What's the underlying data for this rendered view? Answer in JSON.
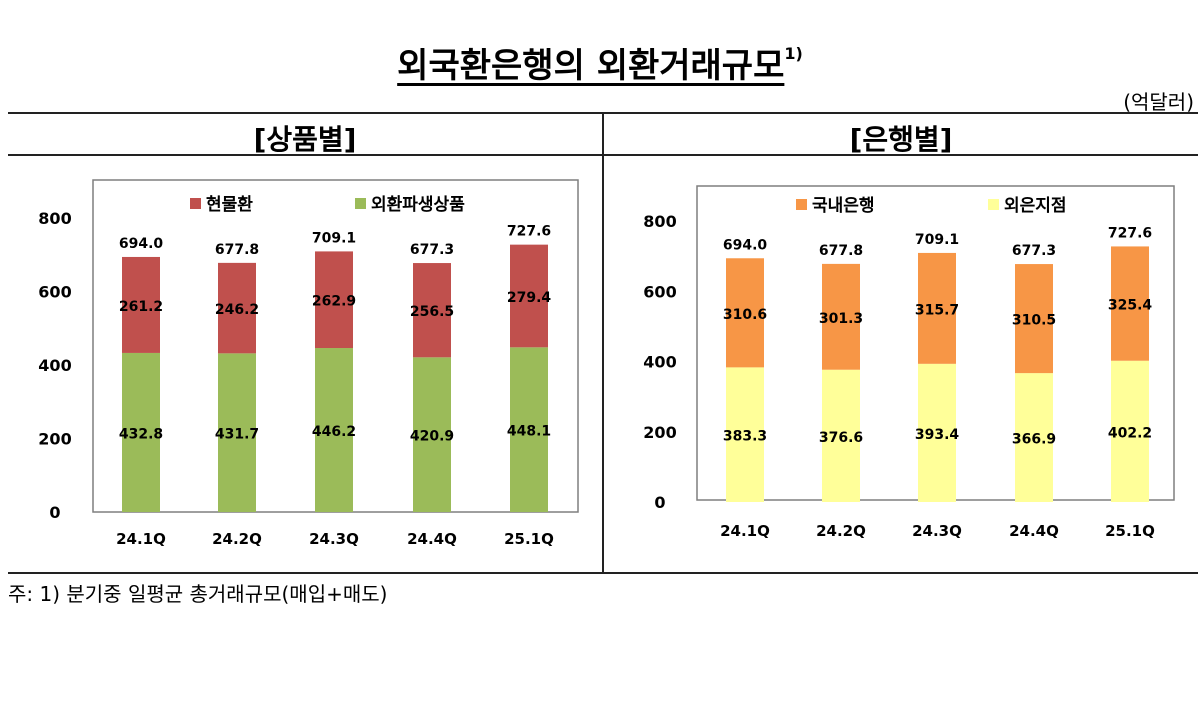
{
  "title": "외국환은행의 외환거래규모",
  "title_note": "1)",
  "unit": "(억달러)",
  "footnote": "주: 1) 분기중 일평균 총거래규모(매입+매도)",
  "chart_data": [
    {
      "type": "bar",
      "stacked": true,
      "title": "[상품별]",
      "categories": [
        "24.1Q",
        "24.2Q",
        "24.3Q",
        "24.4Q",
        "25.1Q"
      ],
      "ylim": [
        0,
        800
      ],
      "yticks": [
        0,
        200,
        400,
        600,
        800
      ],
      "legend_position": "top",
      "series": [
        {
          "name": "외환파생상품",
          "color": "#9BBB59",
          "values": [
            432.8,
            431.7,
            446.2,
            420.9,
            448.1
          ]
        },
        {
          "name": "현물환",
          "color": "#C0504D",
          "values": [
            261.2,
            246.2,
            262.9,
            256.5,
            279.4
          ]
        }
      ],
      "legend_order": [
        1,
        0
      ],
      "totals": [
        "694.0",
        "677.8",
        "709.1",
        "677.3",
        "727.6"
      ]
    },
    {
      "type": "bar",
      "stacked": true,
      "title": "[은행별]",
      "categories": [
        "24.1Q",
        "24.2Q",
        "24.3Q",
        "24.4Q",
        "25.1Q"
      ],
      "ylim": [
        0,
        800
      ],
      "yticks": [
        0,
        200,
        400,
        600,
        800
      ],
      "legend_position": "top",
      "series": [
        {
          "name": "외은지점",
          "color": "#FFFF99",
          "values": [
            383.3,
            376.6,
            393.4,
            366.9,
            402.2
          ]
        },
        {
          "name": "국내은행",
          "color": "#F79646",
          "values": [
            310.6,
            301.3,
            315.7,
            310.5,
            325.4
          ]
        }
      ],
      "legend_order": [
        1,
        0
      ],
      "totals": [
        "694.0",
        "677.8",
        "709.1",
        "677.3",
        "727.6"
      ]
    }
  ]
}
